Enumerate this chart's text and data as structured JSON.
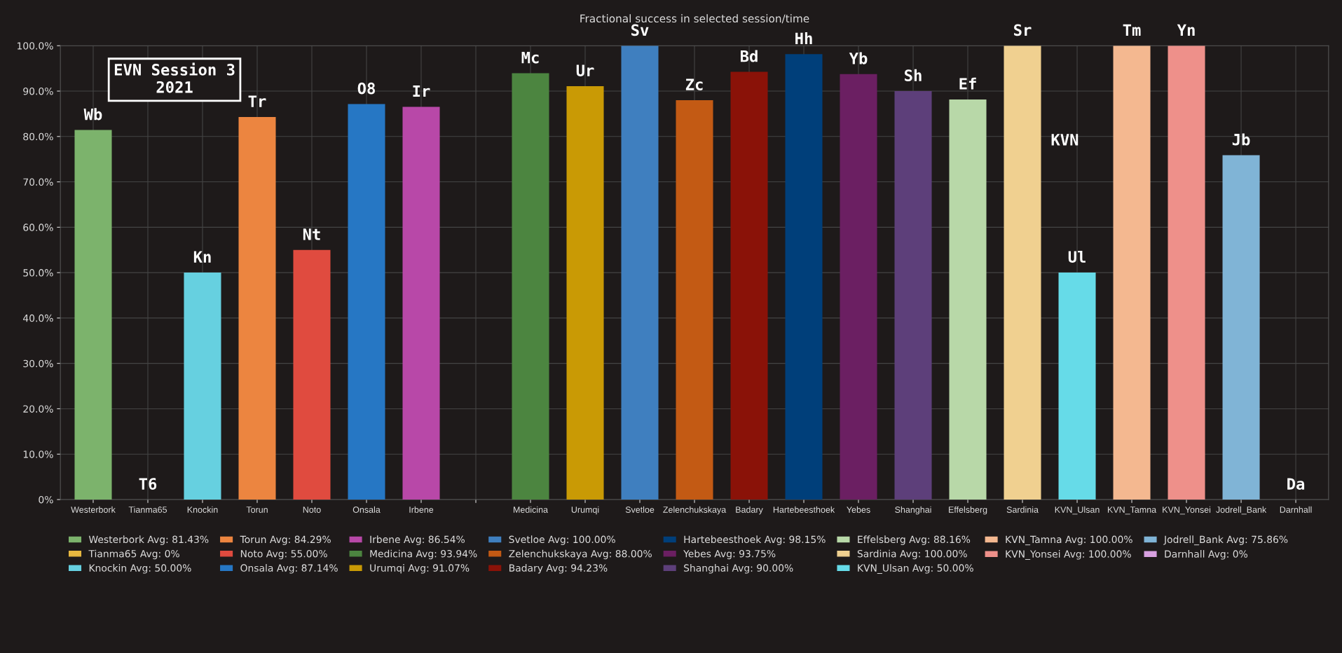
{
  "chart_data": {
    "type": "bar",
    "title": "Fractional success in selected session/time",
    "categories": [
      "Westerbork",
      "Tianma65",
      "Knockin",
      "Torun",
      "Noto",
      "Onsala",
      "Irbene",
      null,
      "Medicina",
      "Urumqi",
      "Svetloe",
      "Zelenchukskaya",
      "Badary",
      "Hartebeesthoek",
      "Yebes",
      "Shanghai",
      "Effelsberg",
      "Sardinia",
      "KVN_Ulsan",
      "KVN_Tamna",
      "KVN_Yonsei",
      "Jodrell_Bank",
      "Darnhall"
    ],
    "series": [
      {
        "name": "Westerbork Avg: 81.43%",
        "color": "#7cb36c",
        "values": [
          81.43,
          null,
          null,
          null,
          null,
          null,
          null,
          null,
          null,
          null,
          null,
          null,
          null,
          null,
          null,
          null,
          null,
          null,
          null,
          null,
          null,
          null,
          null
        ],
        "value_labels": [
          "Wb",
          null,
          null,
          null,
          null,
          null,
          null,
          null,
          null,
          null,
          null,
          null,
          null,
          null,
          null,
          null,
          null,
          null,
          null,
          null,
          null,
          null,
          null
        ]
      },
      {
        "name": "Tianma65 Avg: 0%",
        "color": "#e8b840",
        "values": [
          null,
          0,
          null,
          null,
          null,
          null,
          null,
          null,
          null,
          null,
          null,
          null,
          null,
          null,
          null,
          null,
          null,
          null,
          null,
          null,
          null,
          null,
          null
        ],
        "value_labels": [
          null,
          "T6",
          null,
          null,
          null,
          null,
          null,
          null,
          null,
          null,
          null,
          null,
          null,
          null,
          null,
          null,
          null,
          null,
          null,
          null,
          null,
          null,
          null
        ]
      },
      {
        "name": "Knockin Avg: 50.00%",
        "color": "#66d0e0",
        "values": [
          null,
          null,
          50.0,
          null,
          null,
          null,
          null,
          null,
          null,
          null,
          null,
          null,
          null,
          null,
          null,
          null,
          null,
          null,
          null,
          null,
          null,
          null,
          null
        ],
        "value_labels": [
          null,
          null,
          "Kn",
          null,
          null,
          null,
          null,
          null,
          null,
          null,
          null,
          null,
          null,
          null,
          null,
          null,
          null,
          null,
          null,
          null,
          null,
          null,
          null
        ]
      },
      {
        "name": "Torun Avg: 84.29%",
        "color": "#ec8540",
        "values": [
          null,
          null,
          null,
          84.29,
          null,
          null,
          null,
          null,
          null,
          null,
          null,
          null,
          null,
          null,
          null,
          null,
          null,
          null,
          null,
          null,
          null,
          null,
          null
        ],
        "value_labels": [
          null,
          null,
          null,
          "Tr",
          null,
          null,
          null,
          null,
          null,
          null,
          null,
          null,
          null,
          null,
          null,
          null,
          null,
          null,
          null,
          null,
          null,
          null,
          null
        ]
      },
      {
        "name": "Noto Avg: 55.00%",
        "color": "#e04b3f",
        "values": [
          null,
          null,
          null,
          null,
          55.0,
          null,
          null,
          null,
          null,
          null,
          null,
          null,
          null,
          null,
          null,
          null,
          null,
          null,
          null,
          null,
          null,
          null,
          null
        ],
        "value_labels": [
          null,
          null,
          null,
          null,
          "Nt",
          null,
          null,
          null,
          null,
          null,
          null,
          null,
          null,
          null,
          null,
          null,
          null,
          null,
          null,
          null,
          null,
          null,
          null
        ]
      },
      {
        "name": "Onsala Avg: 87.14%",
        "color": "#2677c4",
        "values": [
          null,
          null,
          null,
          null,
          null,
          87.14,
          null,
          null,
          null,
          null,
          null,
          null,
          null,
          null,
          null,
          null,
          null,
          null,
          null,
          null,
          null,
          null,
          null
        ],
        "value_labels": [
          null,
          null,
          null,
          null,
          null,
          "O8",
          null,
          null,
          null,
          null,
          null,
          null,
          null,
          null,
          null,
          null,
          null,
          null,
          null,
          null,
          null,
          null,
          null
        ]
      },
      {
        "name": "Irbene Avg: 86.54%",
        "color": "#b848a8",
        "values": [
          null,
          null,
          null,
          null,
          null,
          null,
          86.54,
          null,
          null,
          null,
          null,
          null,
          null,
          null,
          null,
          null,
          null,
          null,
          null,
          null,
          null,
          null,
          null
        ],
        "value_labels": [
          null,
          null,
          null,
          null,
          null,
          null,
          "Ir",
          null,
          null,
          null,
          null,
          null,
          null,
          null,
          null,
          null,
          null,
          null,
          null,
          null,
          null,
          null,
          null
        ]
      },
      {
        "name": "Medicina Avg: 93.94%",
        "color": "#4c8540",
        "values": [
          null,
          null,
          null,
          null,
          null,
          null,
          null,
          null,
          93.94,
          null,
          null,
          null,
          null,
          null,
          null,
          null,
          null,
          null,
          null,
          null,
          null,
          null,
          null
        ],
        "value_labels": [
          null,
          null,
          null,
          null,
          null,
          null,
          null,
          null,
          "Mc",
          null,
          null,
          null,
          null,
          null,
          null,
          null,
          null,
          null,
          null,
          null,
          null,
          null,
          null
        ]
      },
      {
        "name": "Urumqi Avg: 91.07%",
        "color": "#c99a05",
        "values": [
          null,
          null,
          null,
          null,
          null,
          null,
          null,
          null,
          null,
          91.07,
          null,
          null,
          null,
          null,
          null,
          null,
          null,
          null,
          null,
          null,
          null,
          null,
          null
        ],
        "value_labels": [
          null,
          null,
          null,
          null,
          null,
          null,
          null,
          null,
          null,
          "Ur",
          null,
          null,
          null,
          null,
          null,
          null,
          null,
          null,
          null,
          null,
          null,
          null,
          null
        ]
      },
      {
        "name": "Svetloe Avg: 100.00%",
        "color": "#3f7fbf",
        "values": [
          null,
          null,
          null,
          null,
          null,
          null,
          null,
          null,
          null,
          null,
          100.0,
          null,
          null,
          null,
          null,
          null,
          null,
          null,
          null,
          null,
          null,
          null,
          null
        ],
        "value_labels": [
          null,
          null,
          null,
          null,
          null,
          null,
          null,
          null,
          null,
          null,
          "Sv",
          null,
          null,
          null,
          null,
          null,
          null,
          null,
          null,
          null,
          null,
          null,
          null
        ]
      },
      {
        "name": "Zelenchukskaya Avg: 88.00%",
        "color": "#c35a14",
        "values": [
          null,
          null,
          null,
          null,
          null,
          null,
          null,
          null,
          null,
          null,
          null,
          88.0,
          null,
          null,
          null,
          null,
          null,
          null,
          null,
          null,
          null,
          null,
          null
        ],
        "value_labels": [
          null,
          null,
          null,
          null,
          null,
          null,
          null,
          null,
          null,
          null,
          null,
          "Zc",
          null,
          null,
          null,
          null,
          null,
          null,
          null,
          null,
          null,
          null,
          null
        ]
      },
      {
        "name": "Badary Avg: 94.23%",
        "color": "#8a1208",
        "values": [
          null,
          null,
          null,
          null,
          null,
          null,
          null,
          null,
          null,
          null,
          null,
          null,
          94.23,
          null,
          null,
          null,
          null,
          null,
          null,
          null,
          null,
          null,
          null
        ],
        "value_labels": [
          null,
          null,
          null,
          null,
          null,
          null,
          null,
          null,
          null,
          null,
          null,
          null,
          "Bd",
          null,
          null,
          null,
          null,
          null,
          null,
          null,
          null,
          null,
          null
        ]
      },
      {
        "name": "Hartebeesthoek Avg: 98.15%",
        "color": "#003f7a",
        "values": [
          null,
          null,
          null,
          null,
          null,
          null,
          null,
          null,
          null,
          null,
          null,
          null,
          null,
          98.15,
          null,
          null,
          null,
          null,
          null,
          null,
          null,
          null,
          null
        ],
        "value_labels": [
          null,
          null,
          null,
          null,
          null,
          null,
          null,
          null,
          null,
          null,
          null,
          null,
          null,
          "Hh",
          null,
          null,
          null,
          null,
          null,
          null,
          null,
          null,
          null
        ]
      },
      {
        "name": "Yebes Avg: 93.75%",
        "color": "#6b1f62",
        "values": [
          null,
          null,
          null,
          null,
          null,
          null,
          null,
          null,
          null,
          null,
          null,
          null,
          null,
          null,
          93.75,
          null,
          null,
          null,
          null,
          null,
          null,
          null,
          null
        ],
        "value_labels": [
          null,
          null,
          null,
          null,
          null,
          null,
          null,
          null,
          null,
          null,
          null,
          null,
          null,
          null,
          "Yb",
          null,
          null,
          null,
          null,
          null,
          null,
          null,
          null
        ]
      },
      {
        "name": "Shanghai Avg: 90.00%",
        "color": "#5d3f7a",
        "values": [
          null,
          null,
          null,
          null,
          null,
          null,
          null,
          null,
          null,
          null,
          null,
          null,
          null,
          null,
          null,
          90.0,
          null,
          null,
          null,
          null,
          null,
          null,
          null
        ],
        "value_labels": [
          null,
          null,
          null,
          null,
          null,
          null,
          null,
          null,
          null,
          null,
          null,
          null,
          null,
          null,
          null,
          "Sh",
          null,
          null,
          null,
          null,
          null,
          null,
          null
        ]
      },
      {
        "name": "Effelsberg Avg: 88.16%",
        "color": "#b8d8a8",
        "values": [
          null,
          null,
          null,
          null,
          null,
          null,
          null,
          null,
          null,
          null,
          null,
          null,
          null,
          null,
          null,
          null,
          88.16,
          null,
          null,
          null,
          null,
          null,
          null
        ],
        "value_labels": [
          null,
          null,
          null,
          null,
          null,
          null,
          null,
          null,
          null,
          null,
          null,
          null,
          null,
          null,
          null,
          null,
          "Ef",
          null,
          null,
          null,
          null,
          null,
          null
        ]
      },
      {
        "name": "Sardinia Avg: 100.00%",
        "color": "#f0d090",
        "values": [
          null,
          null,
          null,
          null,
          null,
          null,
          null,
          null,
          null,
          null,
          null,
          null,
          null,
          null,
          null,
          null,
          null,
          100.0,
          null,
          null,
          null,
          null,
          null
        ],
        "value_labels": [
          null,
          null,
          null,
          null,
          null,
          null,
          null,
          null,
          null,
          null,
          null,
          null,
          null,
          null,
          null,
          null,
          null,
          "Sr",
          null,
          null,
          null,
          null,
          null
        ]
      },
      {
        "name": "KVN_Ulsan Avg: 50.00%",
        "color": "#66dbe8",
        "values": [
          null,
          null,
          null,
          null,
          null,
          null,
          null,
          null,
          null,
          null,
          null,
          null,
          null,
          null,
          null,
          null,
          null,
          null,
          50.0,
          null,
          null,
          null,
          null
        ],
        "value_labels": [
          null,
          null,
          null,
          null,
          null,
          null,
          null,
          null,
          null,
          null,
          null,
          null,
          null,
          null,
          null,
          null,
          null,
          null,
          "Ul",
          null,
          null,
          null,
          null
        ]
      },
      {
        "name": "KVN_Tamna Avg: 100.00%",
        "color": "#f4b890",
        "values": [
          null,
          null,
          null,
          null,
          null,
          null,
          null,
          null,
          null,
          null,
          null,
          null,
          null,
          null,
          null,
          null,
          null,
          null,
          null,
          100.0,
          null,
          null,
          null
        ],
        "value_labels": [
          null,
          null,
          null,
          null,
          null,
          null,
          null,
          null,
          null,
          null,
          null,
          null,
          null,
          null,
          null,
          null,
          null,
          null,
          null,
          "Tm",
          null,
          null,
          null
        ]
      },
      {
        "name": "KVN_Yonsei Avg: 100.00%",
        "color": "#ee908a",
        "values": [
          null,
          null,
          null,
          null,
          null,
          null,
          null,
          null,
          null,
          null,
          null,
          null,
          null,
          null,
          null,
          null,
          null,
          null,
          null,
          null,
          100.0,
          null,
          null
        ],
        "value_labels": [
          null,
          null,
          null,
          null,
          null,
          null,
          null,
          null,
          null,
          null,
          null,
          null,
          null,
          null,
          null,
          null,
          null,
          null,
          null,
          null,
          "Yn",
          null,
          null
        ]
      },
      {
        "name": "Jodrell_Bank Avg: 75.86%",
        "color": "#80b4d6",
        "values": [
          null,
          null,
          null,
          null,
          null,
          null,
          null,
          null,
          null,
          null,
          null,
          null,
          null,
          null,
          null,
          null,
          null,
          null,
          null,
          null,
          null,
          75.86,
          null
        ],
        "value_labels": [
          null,
          null,
          null,
          null,
          null,
          null,
          null,
          null,
          null,
          null,
          null,
          null,
          null,
          null,
          null,
          null,
          null,
          null,
          null,
          null,
          null,
          "Jb",
          null
        ]
      },
      {
        "name": "Darnhall Avg: 0%",
        "color": "#d8a0e0",
        "values": [
          null,
          null,
          null,
          null,
          null,
          null,
          null,
          null,
          null,
          null,
          null,
          null,
          null,
          null,
          null,
          null,
          null,
          null,
          null,
          null,
          null,
          null,
          0
        ],
        "value_labels": [
          null,
          null,
          null,
          null,
          null,
          null,
          null,
          null,
          null,
          null,
          null,
          null,
          null,
          null,
          null,
          null,
          null,
          null,
          null,
          null,
          null,
          null,
          "Da"
        ]
      }
    ],
    "ylim": [
      0,
      100
    ],
    "yticks": [
      {
        "value": 0,
        "label": "0%"
      },
      {
        "value": 10,
        "label": "10.0%"
      },
      {
        "value": 20,
        "label": "20.0%"
      },
      {
        "value": 30,
        "label": "30.0%"
      },
      {
        "value": 40,
        "label": "40.0%"
      },
      {
        "value": 50,
        "label": "50.0%"
      },
      {
        "value": 60,
        "label": "60.0%"
      },
      {
        "value": 70,
        "label": "70.0%"
      },
      {
        "value": 80,
        "label": "80.0%"
      },
      {
        "value": 90,
        "label": "90.0%"
      },
      {
        "value": 100,
        "label": "100.0%"
      }
    ],
    "annotations": [
      "EVN Session 3\n2021",
      "KVN"
    ],
    "grid": true,
    "legend": "bottom"
  }
}
